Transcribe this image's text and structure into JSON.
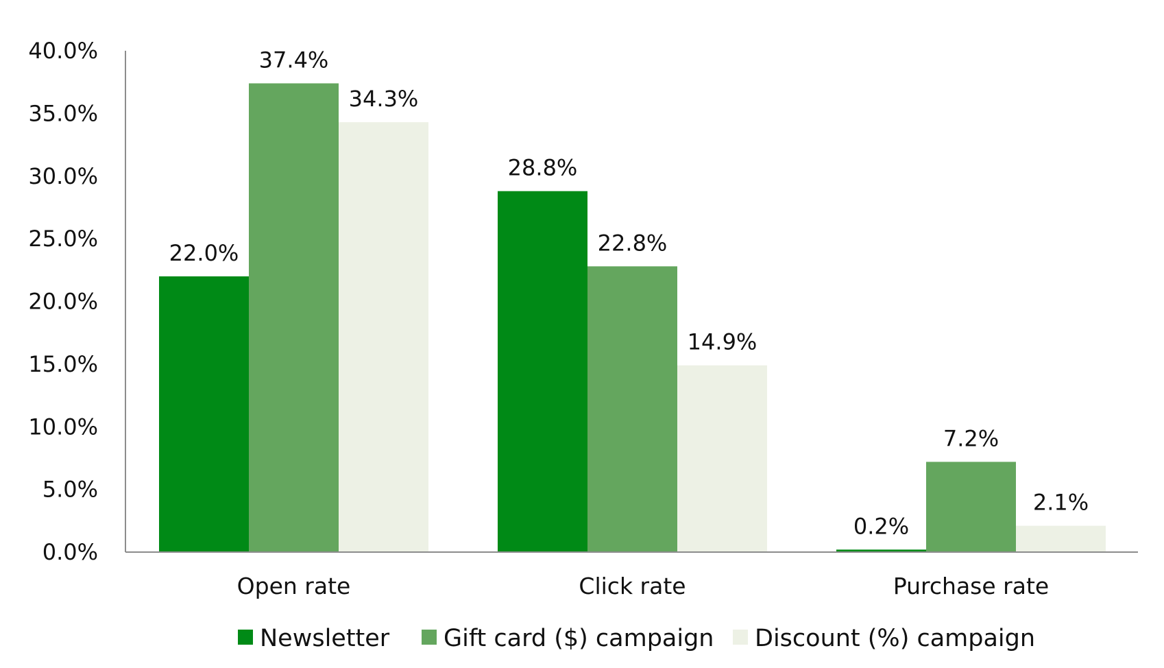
{
  "chart_data": {
    "type": "bar",
    "categories": [
      "Open rate",
      "Click rate",
      "Purchase rate"
    ],
    "series": [
      {
        "name": "Newsletter",
        "values": [
          22.0,
          28.8,
          0.2
        ],
        "labels": [
          "22.0%",
          "28.8%",
          "0.2%"
        ],
        "color": "#008a16"
      },
      {
        "name": "Gift card ($) campaign",
        "values": [
          37.4,
          22.8,
          7.2
        ],
        "labels": [
          "37.4%",
          "22.8%",
          "7.2%"
        ],
        "color": "#64a65e"
      },
      {
        "name": "Discount (%) campaign",
        "values": [
          34.3,
          14.9,
          2.1
        ],
        "labels": [
          "34.3%",
          "14.9%",
          "2.1%"
        ],
        "color": "#edf1e5"
      }
    ],
    "ylim": [
      0,
      40
    ],
    "yticks": [
      0,
      5,
      10,
      15,
      20,
      25,
      30,
      35,
      40
    ],
    "ytick_labels": [
      "0.0%",
      "5.0%",
      "10.0%",
      "15.0%",
      "20.0%",
      "25.0%",
      "30.0%",
      "35.0%",
      "40.0%"
    ],
    "grid": false,
    "legend_position": "bottom",
    "title": "",
    "xlabel": "",
    "ylabel": ""
  }
}
